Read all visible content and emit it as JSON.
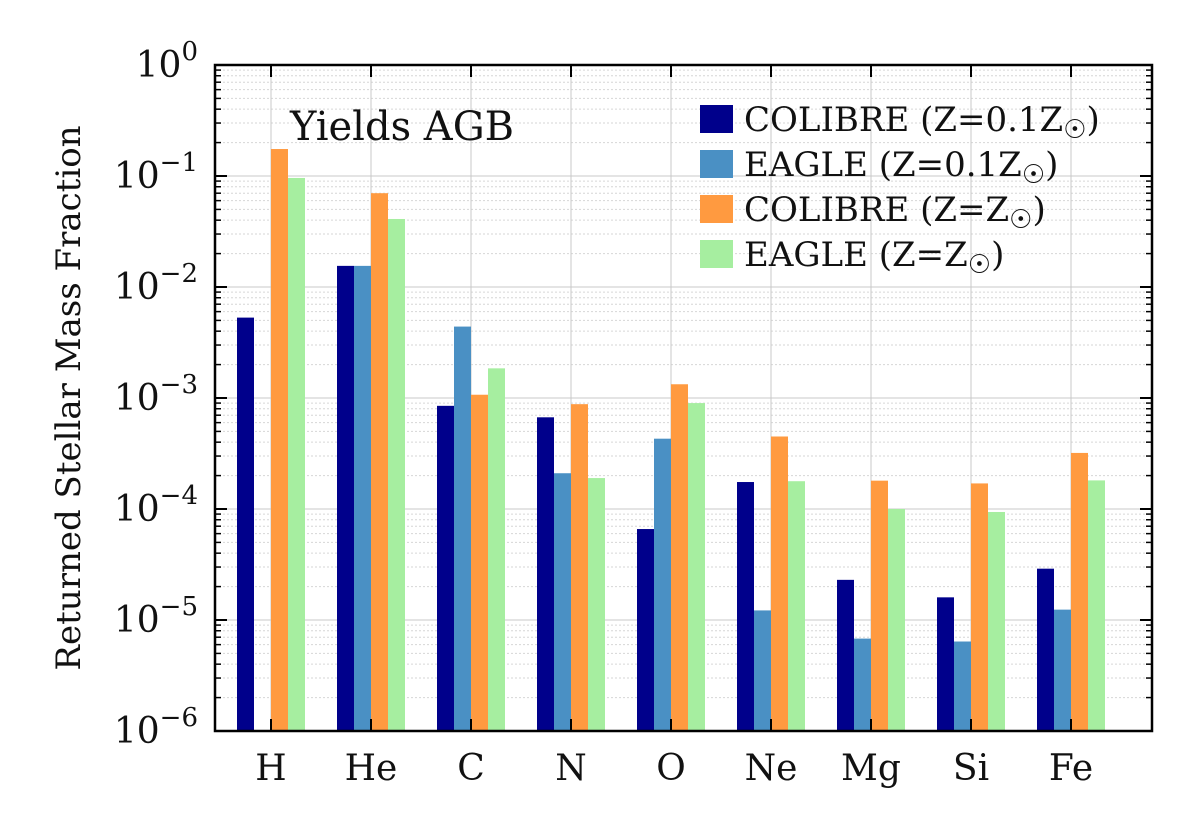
{
  "chart_data": {
    "type": "bar",
    "title": "",
    "annotation": "Yields AGB",
    "xlabel": "",
    "ylabel": "Returned Stellar Mass Fraction",
    "yscale": "log",
    "ylim": [
      1e-06,
      1
    ],
    "yticks": [
      {
        "base": "10",
        "exp": "0"
      },
      {
        "base": "10",
        "exp": "−1"
      },
      {
        "base": "10",
        "exp": "−2"
      },
      {
        "base": "10",
        "exp": "−3"
      },
      {
        "base": "10",
        "exp": "−4"
      },
      {
        "base": "10",
        "exp": "−5"
      },
      {
        "base": "10",
        "exp": "−6"
      }
    ],
    "grid": true,
    "legend_position": "top-right",
    "categories": [
      "H",
      "He",
      "C",
      "N",
      "O",
      "Ne",
      "Mg",
      "Si",
      "Fe"
    ],
    "series": [
      {
        "name": "COLIBRE (Z=0.1Z☉)",
        "name_main": "COLIBRE (Z=0.1Z",
        "color": "#00008b",
        "values": [
          0.0053,
          0.0155,
          0.00085,
          0.00067,
          6.6e-05,
          0.000175,
          2.3e-05,
          1.6e-05,
          2.9e-05
        ]
      },
      {
        "name": "EAGLE (Z=0.1Z☉)",
        "name_main": "EAGLE (Z=0.1Z",
        "color": "#4a90c4",
        "values": [
          null,
          0.0155,
          0.0044,
          0.00021,
          0.00043,
          1.22e-05,
          6.8e-06,
          6.4e-06,
          1.24e-05
        ]
      },
      {
        "name": "COLIBRE (Z=Z☉)",
        "name_main": "COLIBRE (Z=Z",
        "color": "#ff9a40",
        "values": [
          0.175,
          0.07,
          0.00107,
          0.00088,
          0.00133,
          0.00045,
          0.00018,
          0.00017,
          0.00032
        ]
      },
      {
        "name": "EAGLE (Z=Z☉)",
        "name_main": "EAGLE (Z=Z",
        "color": "#a6eea0",
        "values": [
          0.096,
          0.041,
          0.00185,
          0.00019,
          0.0009,
          0.000178,
          0.0001,
          9.4e-05,
          0.000181
        ]
      }
    ]
  }
}
